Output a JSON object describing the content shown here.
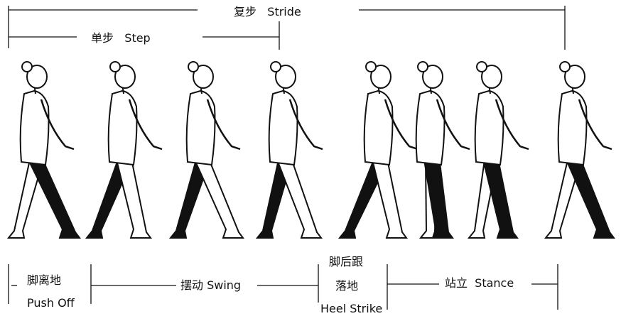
{
  "top": {
    "stride_zh": "复步",
    "stride_en": "Stride",
    "step_zh": "单步",
    "step_en": "Step"
  },
  "phases": {
    "push_off_zh": "脚离地",
    "push_off_en": "Push Off",
    "swing": "摆动 Swing",
    "heel_strike_zh_1": "脚后跟",
    "heel_strike_zh_2": "落地",
    "heel_strike_en": "Heel Strike",
    "stance": "站立  Stance"
  },
  "figures": [
    {
      "id": "f1",
      "stance_leg": "front"
    },
    {
      "id": "f2",
      "stance_leg": "back"
    },
    {
      "id": "f3",
      "stance_leg": "back"
    },
    {
      "id": "f4",
      "stance_leg": "back"
    },
    {
      "id": "f5",
      "stance_leg": "back"
    },
    {
      "id": "f6",
      "stance_leg": "front"
    },
    {
      "id": "f7",
      "stance_leg": "front"
    },
    {
      "id": "f8",
      "stance_leg": "front"
    }
  ],
  "colors": {
    "ink": "#111111",
    "paper": "#ffffff"
  }
}
